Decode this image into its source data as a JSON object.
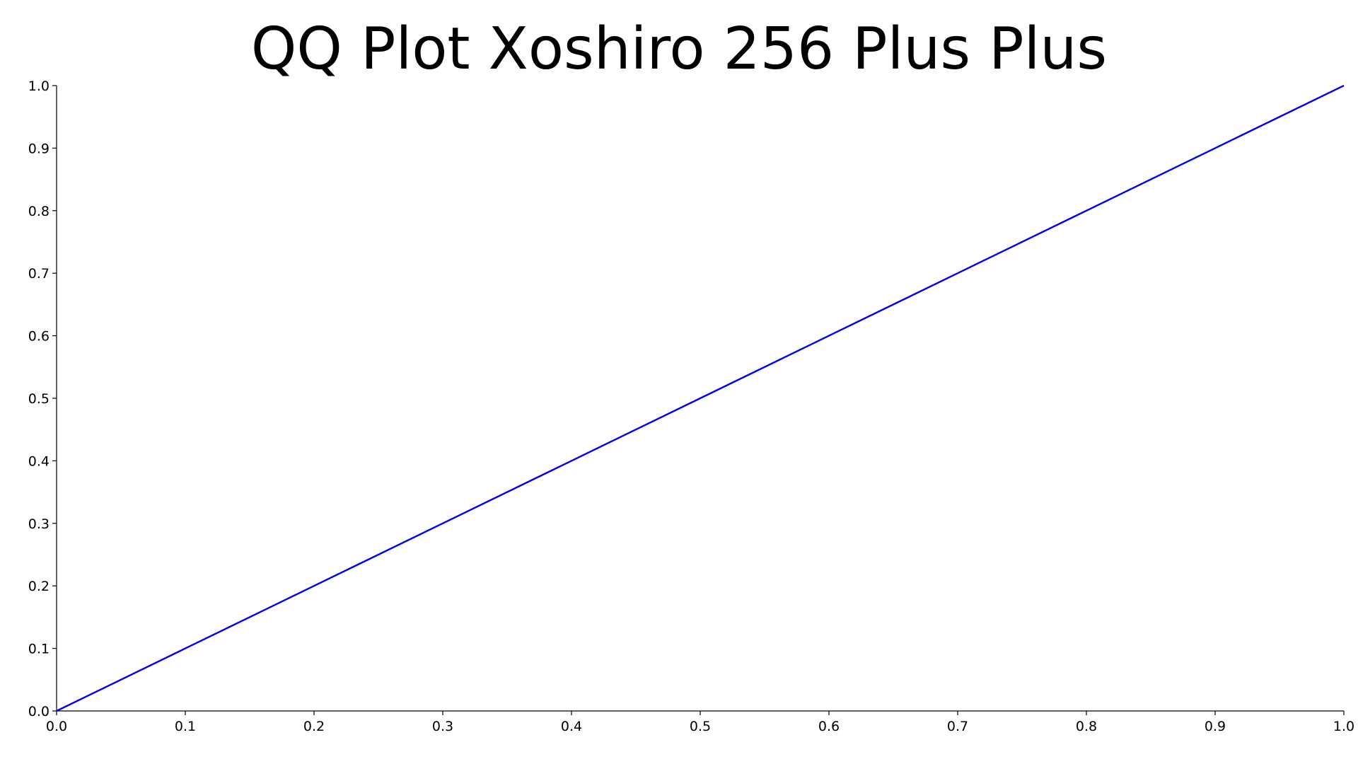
{
  "chart_data": {
    "type": "line",
    "title": "QQ Plot Xoshiro 256 Plus Plus",
    "xlabel": "",
    "ylabel": "",
    "xlim": [
      0.0,
      1.0
    ],
    "ylim": [
      0.0,
      1.0
    ],
    "x_ticks": [
      "0.0",
      "0.1",
      "0.2",
      "0.3",
      "0.4",
      "0.5",
      "0.6",
      "0.7",
      "0.8",
      "0.9",
      "1.0"
    ],
    "y_ticks": [
      "0.0",
      "0.1",
      "0.2",
      "0.3",
      "0.4",
      "0.5",
      "0.6",
      "0.7",
      "0.8",
      "0.9",
      "1.0"
    ],
    "grid": false,
    "legend": "none",
    "series": [
      {
        "color": "#0000ee",
        "x": [
          0.0,
          0.1,
          0.2,
          0.3,
          0.4,
          0.5,
          0.6,
          0.7,
          0.8,
          0.9,
          1.0
        ],
        "y": [
          0.0,
          0.1,
          0.2,
          0.3,
          0.4,
          0.5,
          0.6,
          0.7,
          0.8,
          0.9,
          1.0
        ]
      }
    ]
  }
}
